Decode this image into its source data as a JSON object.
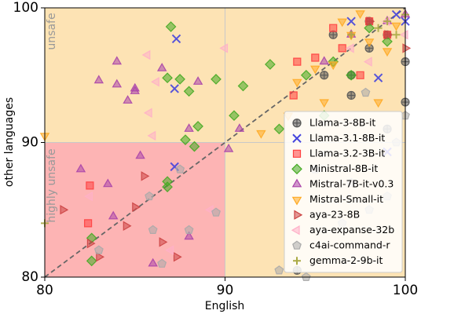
{
  "chart_data": {
    "type": "scatter",
    "x_label": "English",
    "y_label": "other languages",
    "annotations": [
      "unsafe",
      "highly unsafe"
    ],
    "xlim": [
      80,
      100
    ],
    "ylim": [
      80,
      100
    ],
    "xticks": [
      80,
      90,
      100
    ],
    "yticks": [
      80,
      90,
      100
    ],
    "grid": true,
    "legend": "lower right",
    "series": [
      {
        "name": "Llama-3-8B-it",
        "color": "#555555",
        "marker": "circle-plus",
        "x": [
          98,
          99,
          100,
          97,
          96,
          94,
          99,
          100,
          98,
          97,
          95.5
        ],
        "values": [
          99,
          98,
          96,
          95,
          98,
          80.5,
          91,
          93,
          97,
          93.5,
          95
        ]
      },
      {
        "name": "Llama-3.1-8B-it",
        "color": "#4444dd",
        "marker": "x",
        "x": [
          87.3,
          87.2,
          87.2,
          99,
          98.5,
          99.5,
          100,
          97
        ],
        "values": [
          97.7,
          94,
          88.2,
          89.3,
          94.8,
          99.5,
          99,
          99
        ]
      },
      {
        "name": "Llama-3.2-3B-it",
        "color": "#ff4040",
        "marker": "square",
        "x": [
          82.5,
          82.4,
          93.8,
          95,
          96.5,
          98,
          99,
          97.5,
          96,
          94
        ],
        "values": [
          86.8,
          84,
          93.5,
          96.3,
          97,
          99,
          98,
          95,
          98.5,
          96
        ]
      },
      {
        "name": "Ministral-8B-it",
        "color": "#44aa22",
        "marker": "diamond",
        "x": [
          87,
          86.8,
          87.5,
          88,
          88.5,
          87.8,
          86.8,
          86.8,
          82.6,
          82.6,
          91,
          92.5,
          93,
          94.5,
          96,
          97,
          98,
          99,
          95.5,
          89.5,
          90.5,
          88.3
        ],
        "values": [
          98.6,
          94.8,
          94.7,
          93.8,
          91.2,
          90.2,
          87.1,
          86.7,
          82.9,
          81.2,
          94.2,
          95.8,
          91,
          95,
          96,
          95,
          98.5,
          97.5,
          92,
          94.7,
          92,
          89.7
        ]
      },
      {
        "name": "Mistral-7B-it-v0.3",
        "color": "#aa44aa",
        "marker": "triangle-up",
        "x": [
          84,
          83,
          84,
          85,
          85.3,
          83.5,
          82,
          86.5,
          88.5,
          88,
          90.8,
          90.2,
          85,
          84.6,
          83.8,
          95.5,
          97,
          99,
          100,
          86,
          88
        ],
        "values": [
          96,
          94.6,
          94.3,
          94,
          89,
          86.9,
          88,
          95.5,
          94.5,
          91,
          91,
          89.5,
          93.8,
          93.1,
          84.5,
          96,
          98,
          99,
          99.5,
          81,
          83
        ]
      },
      {
        "name": "Mistral-Small-it",
        "color": "#ffaa22",
        "marker": "triangle-down",
        "x": [
          96.5,
          97,
          98,
          99,
          96,
          95,
          94,
          93.5,
          97.5,
          99.5,
          95.5,
          92,
          80,
          98.5
        ],
        "values": [
          99,
          98,
          97.5,
          96.8,
          95.8,
          95.5,
          94.5,
          92,
          99.6,
          98.7,
          93,
          90.7,
          90.5,
          93
        ]
      },
      {
        "name": "aya-23-8B",
        "color": "#cc4444",
        "marker": "triangle-right",
        "x": [
          81,
          82.5,
          83,
          84.5,
          85.5,
          86.5,
          85,
          99,
          100,
          98,
          87.3
        ],
        "values": [
          85,
          82.5,
          81.5,
          83.8,
          87.5,
          82.6,
          85.2,
          98,
          97,
          99,
          81.5
        ]
      },
      {
        "name": "aya-expanse-32b",
        "color": "#ffb0c8",
        "marker": "triangle-left",
        "x": [
          85.7,
          86.2,
          85.8,
          86,
          82.5,
          87,
          90,
          99,
          97,
          98,
          100,
          89.2
        ],
        "values": [
          96.5,
          94.5,
          92.2,
          90.5,
          86,
          82,
          97,
          99,
          97,
          96,
          98,
          85
        ]
      },
      {
        "name": "c4ai-command-r",
        "color": "#aaaaaa",
        "marker": "pentagon",
        "x": [
          85.8,
          86,
          86.5,
          88,
          89.5,
          93,
          94.5,
          96.5,
          97,
          98,
          99,
          100,
          95,
          99.5,
          97.8,
          83,
          87.5
        ],
        "values": [
          86,
          83.5,
          81,
          83.5,
          84.8,
          80.5,
          80,
          84,
          87,
          85,
          86,
          92,
          88,
          90,
          93.7,
          82,
          88
        ]
      },
      {
        "name": "gemma-2-9b-it",
        "color": "#aaaa44",
        "marker": "plus",
        "x": [
          99,
          100,
          98.5,
          99.5,
          97,
          80
        ],
        "values": [
          99,
          99.5,
          98.5,
          98,
          98,
          84
        ]
      }
    ]
  }
}
